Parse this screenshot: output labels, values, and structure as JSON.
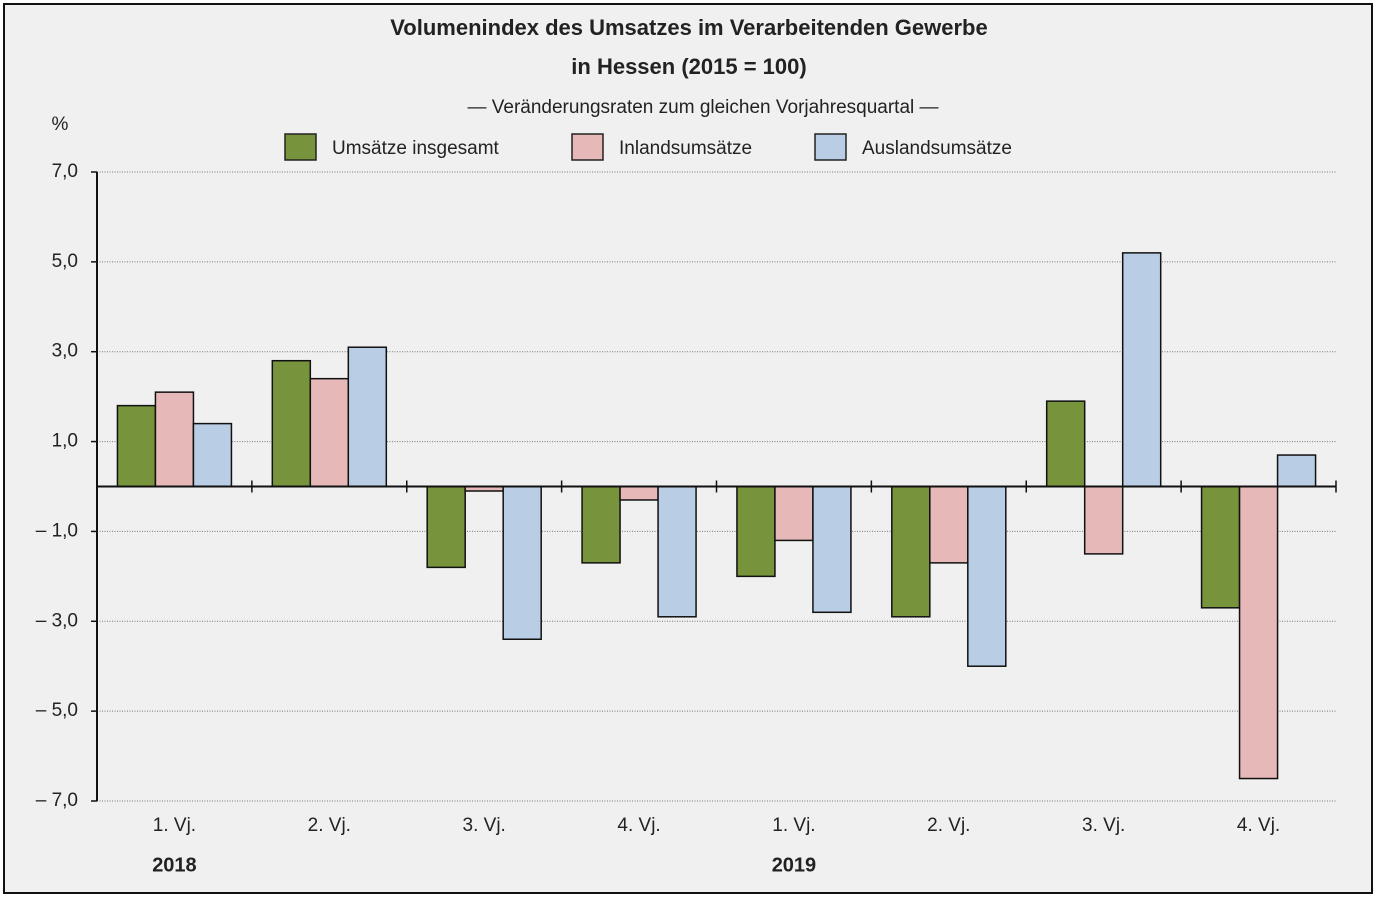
{
  "chart_data": {
    "type": "bar",
    "title": [
      "Volumenindex des Umsatzes im Verarbeitenden Gewerbe",
      "in Hessen (2015 = 100)"
    ],
    "subtitle": "— Veränderungsraten zum gleichen Vorjahresquartal —",
    "y_label": "%",
    "categories": [
      "1. Vj.",
      "2. Vj.",
      "3. Vj.",
      "4. Vj.",
      "1. Vj.",
      "2. Vj.",
      "3. Vj.",
      "4. Vj."
    ],
    "groups": [
      "2018",
      "2019"
    ],
    "series": [
      {
        "name": "Umsätze insgesamt",
        "color": "#77933c",
        "values": [
          1.8,
          2.8,
          -1.8,
          -1.7,
          -2.0,
          -2.9,
          1.9,
          -2.7
        ]
      },
      {
        "name": "Inlandsumsätze",
        "color": "#e6b9b8",
        "values": [
          2.1,
          2.4,
          -0.1,
          -0.3,
          -1.2,
          -1.7,
          -1.5,
          -6.5
        ]
      },
      {
        "name": "Auslandsumsätze",
        "color": "#b9cde5",
        "values": [
          1.4,
          3.1,
          -3.4,
          -2.9,
          -2.8,
          -4.0,
          5.2,
          0.7
        ]
      }
    ],
    "ylim": [
      -7,
      7
    ],
    "yticks": [
      {
        "value": 7,
        "label": "7,0"
      },
      {
        "value": 5,
        "label": "5,0"
      },
      {
        "value": 3,
        "label": "3,0"
      },
      {
        "value": 1,
        "label": "1,0"
      },
      {
        "value": -1,
        "label": "– 1,0"
      },
      {
        "value": -3,
        "label": "– 3,0"
      },
      {
        "value": -5,
        "label": "– 5,0"
      },
      {
        "value": -7,
        "label": "– 7,0"
      }
    ],
    "grid": true
  }
}
